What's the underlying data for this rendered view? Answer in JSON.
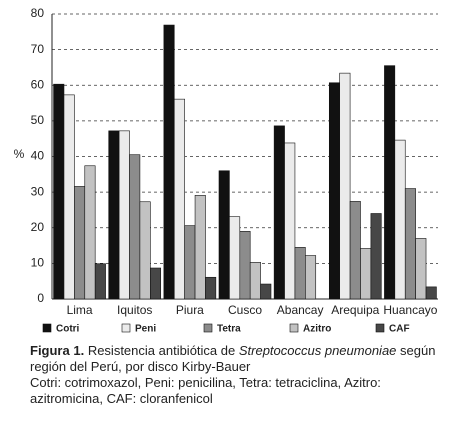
{
  "chart_data": {
    "type": "bar",
    "y_label": "%",
    "categories": [
      "Lima",
      "Iquitos",
      "Piura",
      "Cusco",
      "Abancay",
      "Arequipa",
      "Huancayo"
    ],
    "series": [
      {
        "name": "Cotri",
        "color": "#111111",
        "values": [
          60.3,
          47.2,
          76.9,
          36,
          48.6,
          60.7,
          65.5
        ]
      },
      {
        "name": "Peni",
        "color": "#ebebeb",
        "values": [
          57.3,
          47.2,
          56.1,
          23.1,
          43.8,
          63.4,
          44.6
        ]
      },
      {
        "name": "Tetra",
        "color": "#8c8c8c",
        "values": [
          31.6,
          40.5,
          20.6,
          19,
          14.5,
          27.4,
          31
        ]
      },
      {
        "name": "Azitro",
        "color": "#c2c2c2",
        "values": [
          37.4,
          27.3,
          29.1,
          10.3,
          12.2,
          14.2,
          17
        ]
      },
      {
        "name": "CAF",
        "color": "#474747",
        "values": [
          9.9,
          8.7,
          6.1,
          4.2,
          0,
          24,
          3.4
        ]
      }
    ],
    "ylim": [
      0,
      80
    ],
    "yticks": [
      0,
      10,
      20,
      30,
      40,
      50,
      60,
      70,
      80
    ],
    "grid": true,
    "legend": "bottom"
  },
  "caption": {
    "label": "Figura 1.",
    "text_before": "Resistencia antibiótica de",
    "species": "Streptococcus pneumoniae",
    "text_after": "según región del Perú, por disco Kirby-Bauer",
    "note": "Cotri: cotrimoxazol, Peni: penicilina, Tetra: tetraciclina, Azitro: azitromicina, CAF: cloranfenicol"
  }
}
